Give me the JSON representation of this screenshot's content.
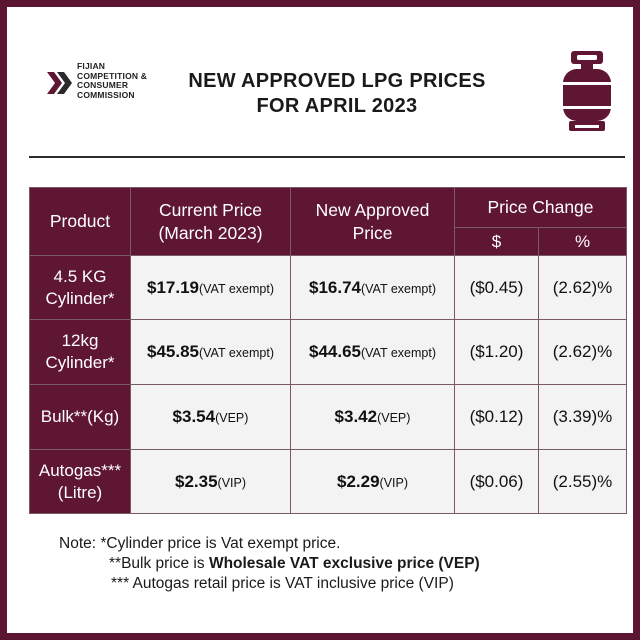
{
  "logo": {
    "lines": [
      "FIJIAN",
      "COMPETITION &",
      "CONSUMER",
      "COMMISSION"
    ],
    "icon": "chevron-arrows-icon"
  },
  "title": {
    "line1": "NEW APPROVED LPG PRICES",
    "line2": "FOR APRIL 2023"
  },
  "icon": "gas-cylinder-icon",
  "colors": {
    "brand": "#5e1632",
    "cell_bg": "#f3f3f3",
    "accent_red": "#d43a3a"
  },
  "table": {
    "headers": {
      "product": "Product",
      "current_l1": "Current Price",
      "current_l2": "(March 2023)",
      "new_l1": "New Approved",
      "new_l2": "Price",
      "change": "Price Change",
      "change_dollar": "$",
      "change_pct": "%"
    },
    "rows": [
      {
        "product_l1": "4.5 KG",
        "product_l2": "Cylinder*",
        "current": "$17.19",
        "current_tag": "(VAT exempt)",
        "new": "$16.74",
        "new_tag": "(VAT exempt)",
        "change_dollar": "($0.45)",
        "change_pct": "(2.62)%"
      },
      {
        "product_l1": "12kg",
        "product_l2": "Cylinder*",
        "current": "$45.85",
        "current_tag": "(VAT exempt)",
        "new": "$44.65",
        "new_tag": "(VAT exempt)",
        "change_dollar": "($1.20)",
        "change_pct": "(2.62)%"
      },
      {
        "product_l1": "Bulk**(Kg)",
        "product_l2": "",
        "current": "$3.54",
        "current_tag": "(VEP)",
        "new": "$3.42",
        "new_tag": "(VEP)",
        "change_dollar": "($0.12)",
        "change_pct": "(3.39)%"
      },
      {
        "product_l1": "Autogas***",
        "product_l2": "(Litre)",
        "current": "$2.35",
        "current_tag": "(VIP)",
        "new": "$2.29",
        "new_tag": "(VIP)",
        "change_dollar": "($0.06)",
        "change_pct": "(2.55)%"
      }
    ]
  },
  "notes": {
    "line1": "Note: *Cylinder price is Vat exempt price.",
    "line2_prefix": "**Bulk price is ",
    "line2_bold": "Wholesale VAT exclusive price (VEP)",
    "line3": "*** Autogas retail price is VAT inclusive price (VIP)"
  }
}
